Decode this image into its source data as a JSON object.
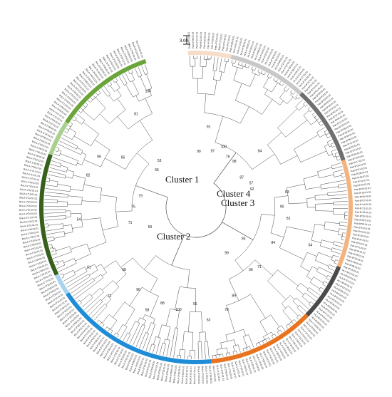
{
  "title": "",
  "scale_bar": {
    "label": "3.00"
  },
  "clusters": [
    {
      "label": "Cluster 1"
    },
    {
      "label": "Cluster 2"
    },
    {
      "label": "Cluster 3"
    },
    {
      "label": "Cluster 4"
    }
  ],
  "groups": [
    {
      "prefix": "Patr-A*",
      "color": "#f6ddc9",
      "count": 12
    },
    {
      "prefix": "HLA-A*",
      "color": "#c8c8c8",
      "count": 22
    },
    {
      "prefix": "Patr-B*",
      "color": "#6f6f6f",
      "count": 22
    },
    {
      "prefix": "Patr-B*",
      "color": "#f3b37e",
      "count": 30
    },
    {
      "prefix": "HLA-B*",
      "color": "#4a4a4a",
      "count": 16
    },
    {
      "prefix": "SLA-1*",
      "color": "#e8731f",
      "count": 30
    },
    {
      "prefix": "BoLA-3*",
      "color": "#1e8cd6",
      "count": 46
    },
    {
      "prefix": "BoLA-2*",
      "color": "#a8d3ee",
      "count": 6
    },
    {
      "prefix": "BoLA-1*",
      "color": "#365f1c",
      "count": 34
    },
    {
      "prefix": "BoLA-2*",
      "color": "#a9d08e",
      "count": 10
    },
    {
      "prefix": "BoLA-3*",
      "color": "#6aa43a",
      "count": 28
    }
  ],
  "bootstrap_values": [
    "99",
    "91",
    "97",
    "100",
    "79",
    "98",
    "94",
    "87",
    "57",
    "92",
    "83",
    "90",
    "81",
    "64",
    "84",
    "93",
    "71",
    "66",
    "99",
    "89",
    "78",
    "53",
    "56",
    "100",
    "88",
    "58",
    "96",
    "72",
    "68",
    "61",
    "59",
    "71",
    "54",
    "75",
    "79",
    "82",
    "99",
    "95",
    "66",
    "53",
    "81",
    "100"
  ]
}
